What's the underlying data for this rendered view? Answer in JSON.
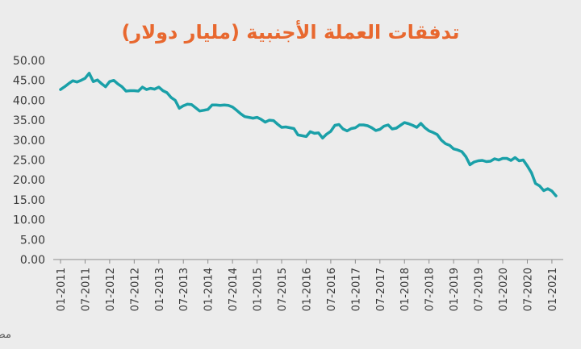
{
  "chart_data": {
    "type": "line",
    "title": "تدفقات العملة الأجنبية (مليار دولار)",
    "source": "مصدر: مصرف لبنان",
    "xlabel": "",
    "ylabel": "",
    "ylim": [
      0,
      50
    ],
    "yticks": [
      "0.00",
      "5.00",
      "10.00",
      "15.00",
      "20.00",
      "25.00",
      "30.00",
      "35.00",
      "40.00",
      "45.00",
      "50.00"
    ],
    "xticks": [
      "01-2011",
      "07-2011",
      "01-2012",
      "07-2012",
      "01-2013",
      "07-2013",
      "01-2014",
      "07-2014",
      "01-2015",
      "07-2015",
      "01-2016",
      "07-2016",
      "01-2017",
      "07-2017",
      "01-2018",
      "07-2018",
      "01-2019",
      "07-2019",
      "01-2020",
      "07-2020",
      "01-2021"
    ],
    "grid": false,
    "colors": {
      "line": "#1aa0a8",
      "title": "#e8682f",
      "background": "#ececec"
    },
    "series": [
      {
        "x": [
          "01-2011",
          "02-2011",
          "03-2011",
          "04-2011",
          "05-2011",
          "06-2011",
          "07-2011",
          "08-2011",
          "09-2011",
          "10-2011",
          "11-2011",
          "12-2011",
          "01-2012",
          "02-2012",
          "03-2012",
          "04-2012",
          "05-2012",
          "06-2012",
          "07-2012",
          "08-2012",
          "09-2012",
          "10-2012",
          "11-2012",
          "12-2012",
          "01-2013",
          "02-2013",
          "03-2013",
          "04-2013",
          "05-2013",
          "06-2013",
          "07-2013",
          "08-2013",
          "09-2013",
          "10-2013",
          "11-2013",
          "12-2013",
          "01-2014",
          "02-2014",
          "03-2014",
          "04-2014",
          "05-2014",
          "06-2014",
          "07-2014",
          "08-2014",
          "09-2014",
          "10-2014",
          "11-2014",
          "12-2014",
          "01-2015",
          "02-2015",
          "03-2015",
          "04-2015",
          "05-2015",
          "06-2015",
          "07-2015",
          "08-2015",
          "09-2015",
          "10-2015",
          "11-2015",
          "12-2015",
          "01-2016",
          "02-2016",
          "03-2016",
          "04-2016",
          "05-2016",
          "06-2016",
          "07-2016",
          "08-2016",
          "09-2016",
          "10-2016",
          "11-2016",
          "12-2016",
          "01-2017",
          "02-2017",
          "03-2017",
          "04-2017",
          "05-2017",
          "06-2017",
          "07-2017",
          "08-2017",
          "09-2017",
          "10-2017",
          "11-2017",
          "12-2017",
          "01-2018",
          "02-2018",
          "03-2018",
          "04-2018",
          "05-2018",
          "06-2018",
          "07-2018",
          "08-2018",
          "09-2018",
          "10-2018",
          "11-2018",
          "12-2018",
          "01-2019",
          "02-2019",
          "03-2019",
          "04-2019",
          "05-2019",
          "06-2019",
          "07-2019",
          "08-2019",
          "09-2019",
          "10-2019",
          "11-2019",
          "12-2019",
          "01-2020",
          "02-2020",
          "03-2020",
          "04-2020",
          "05-2020",
          "06-2020",
          "07-2020",
          "08-2020",
          "09-2020",
          "10-2020",
          "11-2020",
          "12-2020",
          "01-2021",
          "02-2021"
        ],
        "values": [
          42.7,
          43.4,
          44.2,
          44.9,
          44.6,
          45.0,
          45.5,
          46.8,
          44.7,
          45.1,
          44.2,
          43.4,
          44.7,
          45.0,
          44.1,
          43.4,
          42.3,
          42.4,
          42.4,
          42.3,
          43.3,
          42.7,
          43.0,
          42.8,
          43.3,
          42.4,
          41.9,
          40.7,
          40.0,
          38.0,
          38.6,
          39.0,
          38.9,
          38.1,
          37.3,
          37.5,
          37.7,
          38.8,
          38.8,
          38.7,
          38.8,
          38.7,
          38.3,
          37.5,
          36.6,
          35.9,
          35.7,
          35.5,
          35.7,
          35.2,
          34.5,
          35.0,
          34.9,
          34.0,
          33.2,
          33.3,
          33.1,
          32.9,
          31.3,
          31.1,
          30.9,
          32.1,
          31.7,
          31.8,
          30.5,
          31.5,
          32.2,
          33.7,
          33.9,
          32.8,
          32.3,
          32.9,
          33.1,
          33.8,
          33.8,
          33.6,
          33.1,
          32.4,
          32.7,
          33.5,
          33.8,
          32.8,
          33.0,
          33.7,
          34.4,
          34.1,
          33.7,
          33.2,
          34.2,
          33.1,
          32.3,
          31.9,
          31.4,
          30.0,
          29.1,
          28.7,
          27.8,
          27.5,
          27.1,
          25.8,
          23.8,
          24.5,
          24.8,
          24.9,
          24.6,
          24.7,
          25.3,
          25.0,
          25.4,
          25.4,
          24.9,
          25.6,
          24.8,
          25.0,
          23.5,
          21.8,
          19.1,
          18.5,
          17.3,
          17.8,
          17.2,
          16.0
        ]
      }
    ]
  }
}
